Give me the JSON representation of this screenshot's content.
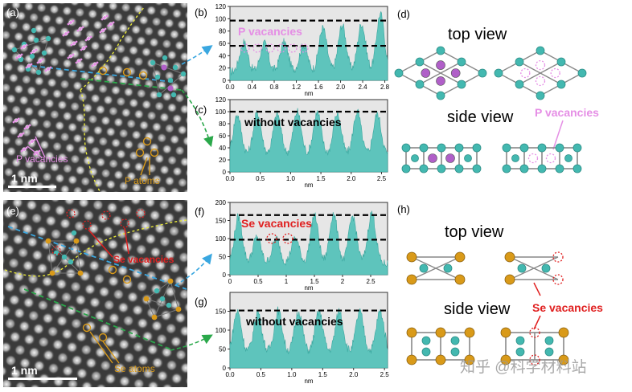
{
  "panels": {
    "a": {
      "label": "(a)",
      "scalebar": "1 nm",
      "vacancy_label": "P vacancies",
      "atom_label": "P atoms"
    },
    "b": {
      "label": "(b)",
      "annotation": "P vacancies",
      "xlabel": "nm"
    },
    "c": {
      "label": "(c)",
      "annotation": "without vacancies",
      "xlabel": "nm"
    },
    "d": {
      "label": "(d)",
      "top_view": "top view",
      "side_view": "side view",
      "vacancy_label": "P vacancies"
    },
    "e": {
      "label": "(e)",
      "scalebar": "1 nm",
      "vacancy_label": "Se vacancies",
      "atom_label": "Se atoms"
    },
    "f": {
      "label": "(f)",
      "annotation": "Se vacancies",
      "xlabel": "nm"
    },
    "g": {
      "label": "(g)",
      "annotation": "without vacancies",
      "xlabel": "nm"
    },
    "h": {
      "label": "(h)",
      "top_view": "top view",
      "side_view": "side view",
      "vacancy_label": "Se vacancies"
    }
  },
  "watermark": "知乎 @科学材料站",
  "colors": {
    "teal": "#43b8b0",
    "violet": "#b05fc8",
    "gold": "#d99a19",
    "red": "#e02020",
    "pink": "#e58ee5",
    "yellow": "#e8e83a",
    "blue": "#3aa7e0",
    "green": "#2aa84a"
  },
  "chart_data": [
    {
      "id": "b",
      "type": "area",
      "xlabel": "nm",
      "xlim": [
        0,
        2.85
      ],
      "ylim": [
        0,
        120
      ],
      "xticks": [
        "0.0",
        "0.4",
        "0.8",
        "1.2",
        "1.6",
        "2.0",
        "2.4",
        "2.8"
      ],
      "xtick_values": [
        0,
        0.4,
        0.8,
        1.2,
        1.6,
        2.0,
        2.4,
        2.8
      ],
      "yticks": [
        "0",
        "20",
        "40",
        "60",
        "80",
        "100",
        "120"
      ],
      "ytick_values": [
        0,
        20,
        40,
        60,
        80,
        100,
        120
      ],
      "reference_lines": [
        97,
        56
      ],
      "peaks": [
        0.25,
        0.62,
        0.98,
        1.33,
        1.68,
        2.03,
        2.38,
        2.72
      ],
      "peak_heights": [
        62,
        60,
        62,
        58,
        85,
        90,
        92,
        108
      ],
      "baseline": 14
    },
    {
      "id": "c",
      "type": "area",
      "xlabel": "nm",
      "xlim": [
        0,
        2.6
      ],
      "ylim": [
        0,
        120
      ],
      "xticks": [
        "0.0",
        "0.5",
        "1.0",
        "1.5",
        "2.0",
        "2.5"
      ],
      "xtick_values": [
        0,
        0.5,
        1.0,
        1.5,
        2.0,
        2.5
      ],
      "yticks": [
        "0",
        "20",
        "40",
        "60",
        "80",
        "100",
        "120"
      ],
      "ytick_values": [
        0,
        20,
        40,
        60,
        80,
        100,
        120
      ],
      "reference_lines": [
        100
      ],
      "peaks": [
        0.12,
        0.45,
        0.78,
        1.11,
        1.44,
        1.77,
        2.1,
        2.43
      ],
      "peak_heights": [
        95,
        98,
        96,
        100,
        99,
        97,
        100,
        96
      ],
      "baseline": 28
    },
    {
      "id": "f",
      "type": "area",
      "xlabel": "nm",
      "xlim": [
        0,
        2.8
      ],
      "ylim": [
        0,
        200
      ],
      "xticks": [
        "0",
        "0.5",
        "1",
        "1.5",
        "2",
        "2.5"
      ],
      "xtick_values": [
        0,
        0.5,
        1.0,
        1.5,
        2.0,
        2.5
      ],
      "yticks": [
        "0",
        "50",
        "100",
        "150",
        "200"
      ],
      "ytick_values": [
        0,
        50,
        100,
        150,
        200
      ],
      "reference_lines": [
        165,
        97
      ],
      "peaks": [
        0.15,
        0.48,
        0.82,
        1.16,
        1.5,
        1.84,
        2.18,
        2.52
      ],
      "peak_heights": [
        160,
        105,
        100,
        102,
        165,
        170,
        162,
        172
      ],
      "baseline": 30
    },
    {
      "id": "g",
      "type": "area",
      "xlabel": "nm",
      "xlim": [
        0,
        2.55
      ],
      "ylim": [
        0,
        200
      ],
      "xticks": [
        "0.0",
        "0.5",
        "1.0",
        "1.5",
        "2.0",
        "2.5"
      ],
      "xtick_values": [
        0,
        0.5,
        1.0,
        1.5,
        2.0,
        2.5
      ],
      "yticks": [
        "0",
        "50",
        "100",
        "150"
      ],
      "ytick_values": [
        0,
        50,
        100,
        150
      ],
      "reference_lines": [
        152
      ],
      "peaks": [
        0.12,
        0.45,
        0.78,
        1.11,
        1.44,
        1.77,
        2.1,
        2.43
      ],
      "peak_heights": [
        150,
        148,
        152,
        150,
        149,
        151,
        148,
        150
      ],
      "baseline": 40
    }
  ]
}
